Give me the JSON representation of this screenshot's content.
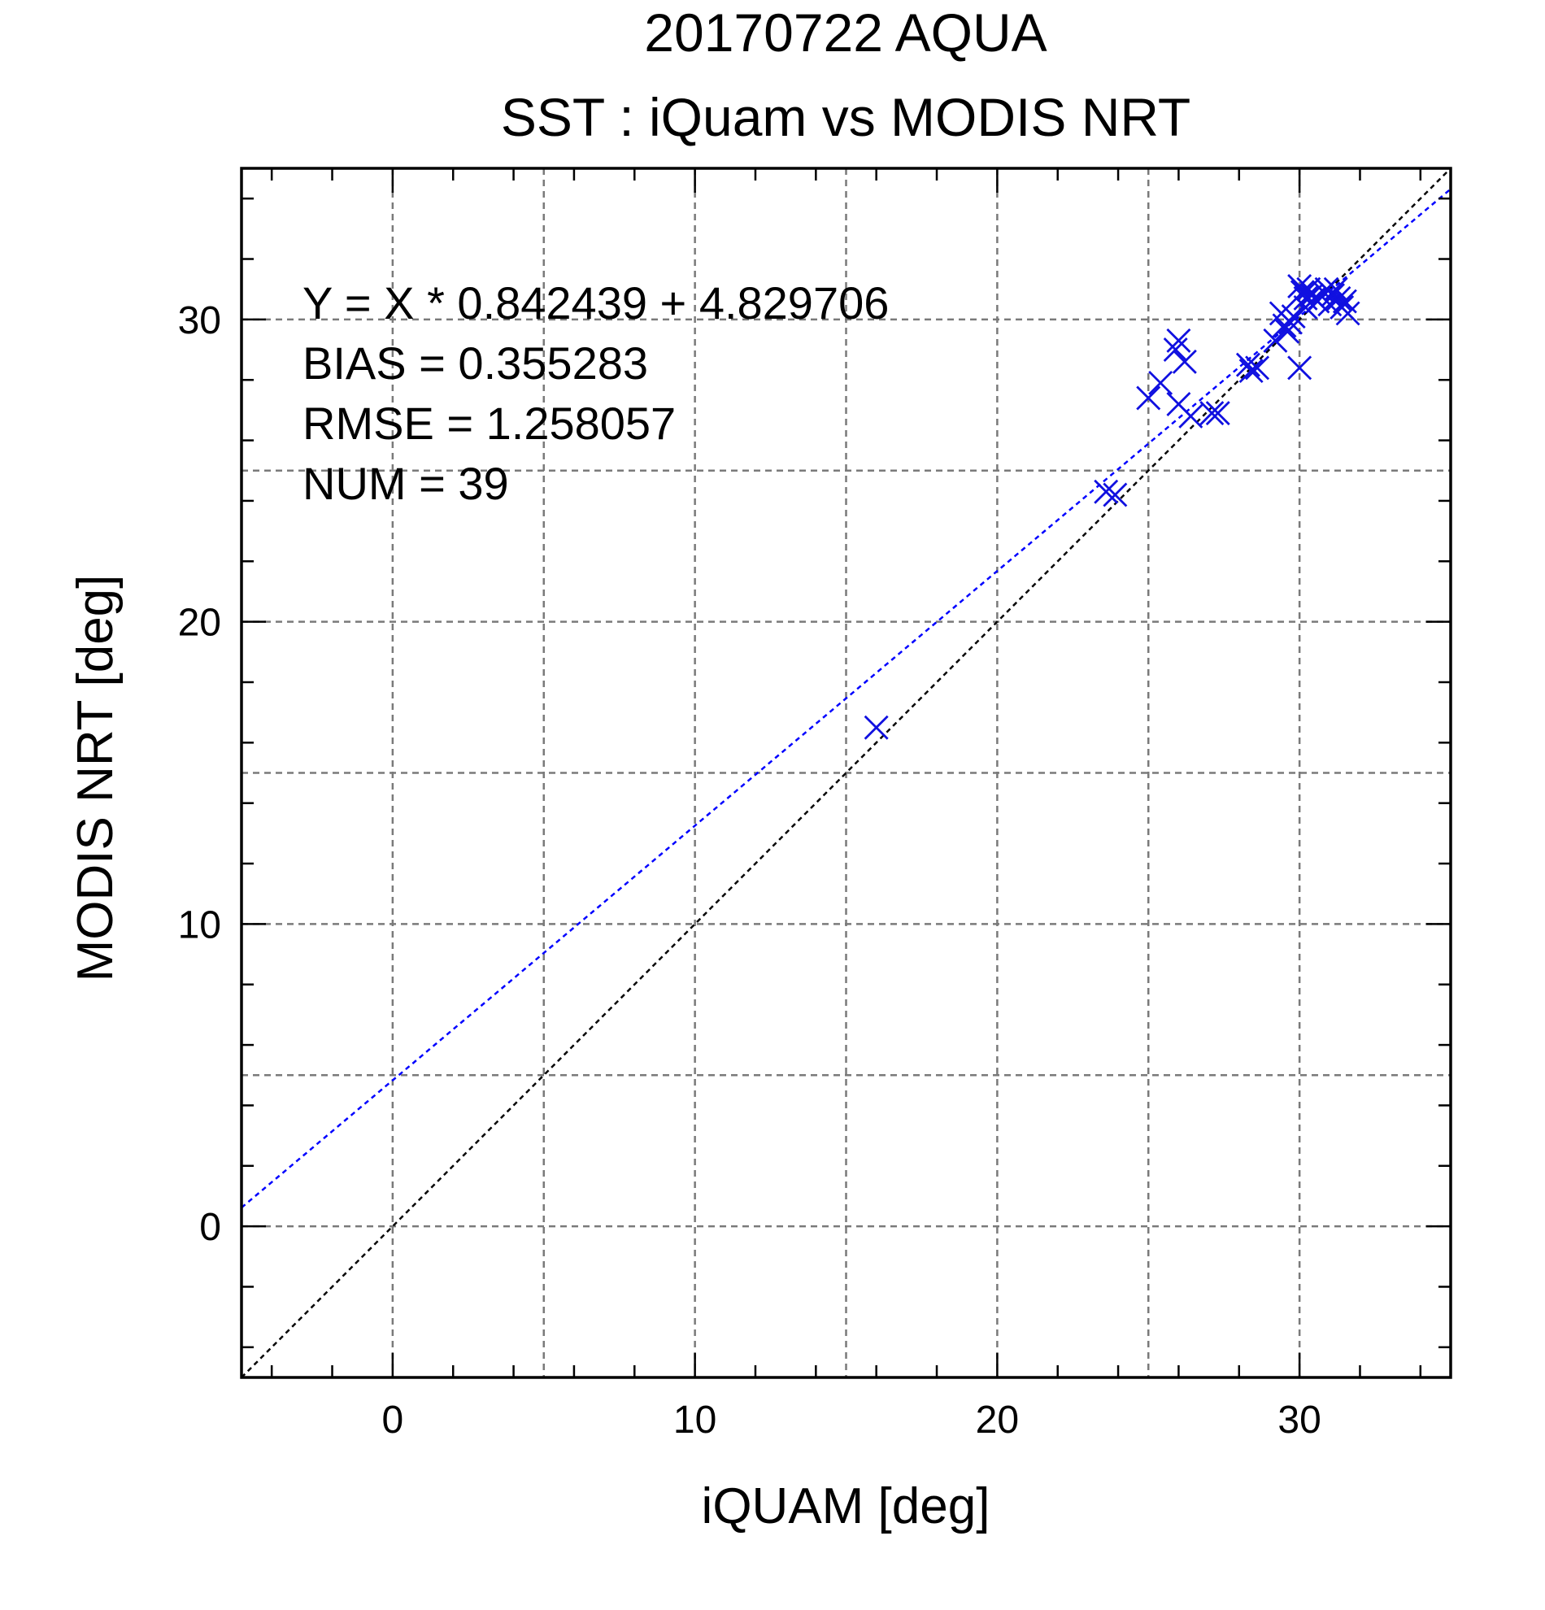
{
  "chart_data": {
    "type": "scatter",
    "title": "20170722 AQUA",
    "subtitle": "SST : iQuam vs MODIS NRT",
    "xlabel": "iQUAM [deg]",
    "ylabel": "MODIS NRT [deg]",
    "xlim": [
      -5,
      35
    ],
    "ylim": [
      -5,
      35
    ],
    "xticks": [
      0,
      10,
      20,
      30
    ],
    "yticks": [
      0,
      10,
      20,
      30
    ],
    "x_tick_labels": [
      "0",
      "10",
      "20",
      "30"
    ],
    "y_tick_labels": [
      "0",
      "10",
      "20",
      "30"
    ],
    "grid": true,
    "marker": "x",
    "colors": {
      "points": "#1010e0",
      "fit_line": "#0000ff",
      "identity_line": "#000000",
      "grid": "#7a7a7a"
    },
    "stats": {
      "fit_text": "Y = X * 0.842439 + 4.829706",
      "bias_text": "BIAS = 0.355283",
      "rmse_text": "RMSE = 1.258057",
      "num_text": "NUM = 39"
    },
    "fit": {
      "slope": 0.842439,
      "intercept": 4.829706
    },
    "identity": {
      "slope": 1,
      "intercept": 0
    },
    "points": [
      {
        "x": 16.0,
        "y": 16.5
      },
      {
        "x": 23.6,
        "y": 24.3
      },
      {
        "x": 23.9,
        "y": 24.2
      },
      {
        "x": 25.0,
        "y": 27.4
      },
      {
        "x": 25.4,
        "y": 27.9
      },
      {
        "x": 25.9,
        "y": 29.0
      },
      {
        "x": 26.0,
        "y": 29.3
      },
      {
        "x": 26.2,
        "y": 28.6
      },
      {
        "x": 26.0,
        "y": 27.2
      },
      {
        "x": 26.4,
        "y": 26.8
      },
      {
        "x": 27.1,
        "y": 26.9
      },
      {
        "x": 27.3,
        "y": 26.9
      },
      {
        "x": 28.3,
        "y": 28.5
      },
      {
        "x": 28.4,
        "y": 28.3
      },
      {
        "x": 28.6,
        "y": 28.4
      },
      {
        "x": 29.2,
        "y": 29.3
      },
      {
        "x": 29.4,
        "y": 30.2
      },
      {
        "x": 29.5,
        "y": 29.8
      },
      {
        "x": 29.6,
        "y": 29.6
      },
      {
        "x": 29.7,
        "y": 29.9
      },
      {
        "x": 30.0,
        "y": 28.4
      },
      {
        "x": 30.0,
        "y": 31.1
      },
      {
        "x": 30.2,
        "y": 30.7
      },
      {
        "x": 30.3,
        "y": 31.0
      },
      {
        "x": 30.4,
        "y": 30.8
      },
      {
        "x": 30.5,
        "y": 30.7
      },
      {
        "x": 30.6,
        "y": 30.6
      },
      {
        "x": 30.8,
        "y": 30.9
      },
      {
        "x": 30.9,
        "y": 31.0
      },
      {
        "x": 31.0,
        "y": 30.5
      },
      {
        "x": 31.1,
        "y": 30.8
      },
      {
        "x": 31.2,
        "y": 31.0
      },
      {
        "x": 31.3,
        "y": 30.7
      },
      {
        "x": 31.4,
        "y": 30.4
      },
      {
        "x": 31.5,
        "y": 30.6
      },
      {
        "x": 31.6,
        "y": 30.2
      },
      {
        "x": 30.1,
        "y": 30.9
      },
      {
        "x": 29.8,
        "y": 30.1
      },
      {
        "x": 30.2,
        "y": 30.4
      }
    ]
  }
}
